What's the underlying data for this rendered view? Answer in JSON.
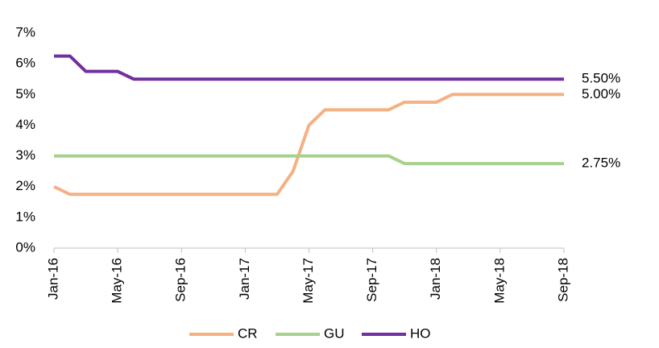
{
  "chart_data": {
    "type": "line",
    "categories": [
      "Jan-16",
      null,
      null,
      null,
      "May-16",
      null,
      null,
      null,
      "Sep-16",
      null,
      null,
      null,
      "Jan-17",
      null,
      null,
      null,
      "May-17",
      null,
      null,
      null,
      "Sep-17",
      null,
      null,
      null,
      "Jan-18",
      null,
      null,
      null,
      "May-18",
      null,
      null,
      null,
      "Sep-18"
    ],
    "series": [
      {
        "name": "CR",
        "color": "#f4b183",
        "end_label": "5.00%",
        "values": [
          2.0,
          1.75,
          1.75,
          1.75,
          1.75,
          1.75,
          1.75,
          1.75,
          1.75,
          1.75,
          1.75,
          1.75,
          1.75,
          1.75,
          1.75,
          2.5,
          4.0,
          4.5,
          4.5,
          4.5,
          4.5,
          4.5,
          4.75,
          4.75,
          4.75,
          5.0,
          5.0,
          5.0,
          5.0,
          5.0,
          5.0,
          5.0,
          5.0
        ]
      },
      {
        "name": "GU",
        "color": "#a9d18e",
        "end_label": "2.75%",
        "values": [
          3.0,
          3.0,
          3.0,
          3.0,
          3.0,
          3.0,
          3.0,
          3.0,
          3.0,
          3.0,
          3.0,
          3.0,
          3.0,
          3.0,
          3.0,
          3.0,
          3.0,
          3.0,
          3.0,
          3.0,
          3.0,
          3.0,
          2.75,
          2.75,
          2.75,
          2.75,
          2.75,
          2.75,
          2.75,
          2.75,
          2.75,
          2.75,
          2.75
        ]
      },
      {
        "name": "HO",
        "color": "#7030a0",
        "end_label": "5.50%",
        "values": [
          6.25,
          6.25,
          5.75,
          5.75,
          5.75,
          5.5,
          5.5,
          5.5,
          5.5,
          5.5,
          5.5,
          5.5,
          5.5,
          5.5,
          5.5,
          5.5,
          5.5,
          5.5,
          5.5,
          5.5,
          5.5,
          5.5,
          5.5,
          5.5,
          5.5,
          5.5,
          5.5,
          5.5,
          5.5,
          5.5,
          5.5,
          5.5,
          5.5
        ]
      }
    ],
    "ylim": [
      0,
      7
    ],
    "yticks": [
      {
        "value": 0,
        "label": "0%"
      },
      {
        "value": 1,
        "label": "1%"
      },
      {
        "value": 2,
        "label": "2%"
      },
      {
        "value": 3,
        "label": "3%"
      },
      {
        "value": 4,
        "label": "4%"
      },
      {
        "value": 5,
        "label": "5%"
      },
      {
        "value": 6,
        "label": "6%"
      },
      {
        "value": 7,
        "label": "7%"
      }
    ],
    "grid": false
  }
}
